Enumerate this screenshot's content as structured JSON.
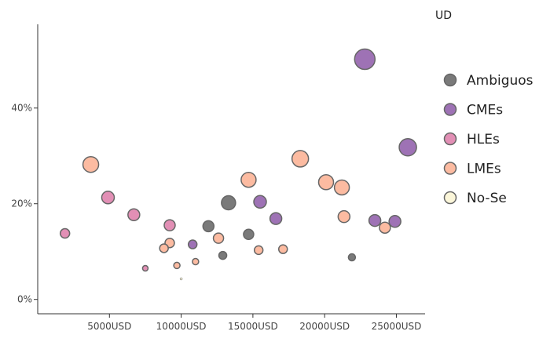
{
  "chart_data": {
    "type": "scatter",
    "title": "",
    "xlabel": "",
    "ylabel": "",
    "unit_label": "UD",
    "xlim": [
      0,
      27000
    ],
    "ylim": [
      -0.03,
      0.575
    ],
    "x_ticks": [
      {
        "value": 5000,
        "label": "5000USD"
      },
      {
        "value": 10000,
        "label": "10000USD"
      },
      {
        "value": 15000,
        "label": "15000USD"
      },
      {
        "value": 20000,
        "label": "20000USD"
      },
      {
        "value": 25000,
        "label": "25000USD"
      }
    ],
    "y_ticks": [
      {
        "value": 0,
        "label": "0%"
      },
      {
        "value": 0.2,
        "label": "20%"
      },
      {
        "value": 0.4,
        "label": "40%"
      }
    ],
    "grid": false,
    "legend_position": "right",
    "series": [
      {
        "name": "Ambiguos",
        "color": "#7a7a7a",
        "points": [
          {
            "x": 11900,
            "y": 0.153,
            "size": 7
          },
          {
            "x": 13300,
            "y": 0.202,
            "size": 9
          },
          {
            "x": 12900,
            "y": 0.092,
            "size": 5
          },
          {
            "x": 14700,
            "y": 0.136,
            "size": 6.5
          },
          {
            "x": 21900,
            "y": 0.088,
            "size": 4.5
          }
        ]
      },
      {
        "name": "CMEs",
        "color": "#9e72b5",
        "points": [
          {
            "x": 10800,
            "y": 0.115,
            "size": 5.5
          },
          {
            "x": 15500,
            "y": 0.204,
            "size": 8
          },
          {
            "x": 16600,
            "y": 0.169,
            "size": 7.5
          },
          {
            "x": 22800,
            "y": 0.502,
            "size": 13
          },
          {
            "x": 23500,
            "y": 0.165,
            "size": 7.5
          },
          {
            "x": 24900,
            "y": 0.163,
            "size": 7.5
          },
          {
            "x": 25800,
            "y": 0.318,
            "size": 11
          }
        ]
      },
      {
        "name": "HLEs",
        "color": "#e28fb5",
        "points": [
          {
            "x": 1900,
            "y": 0.138,
            "size": 6
          },
          {
            "x": 4900,
            "y": 0.213,
            "size": 8
          },
          {
            "x": 6700,
            "y": 0.177,
            "size": 7.5
          },
          {
            "x": 7500,
            "y": 0.065,
            "size": 3.5
          },
          {
            "x": 9200,
            "y": 0.155,
            "size": 7
          }
        ]
      },
      {
        "name": "LMEs",
        "color": "#fcbba1",
        "points": [
          {
            "x": 3700,
            "y": 0.282,
            "size": 10
          },
          {
            "x": 8800,
            "y": 0.107,
            "size": 5.5
          },
          {
            "x": 9200,
            "y": 0.118,
            "size": 6
          },
          {
            "x": 9700,
            "y": 0.071,
            "size": 4
          },
          {
            "x": 11000,
            "y": 0.079,
            "size": 4
          },
          {
            "x": 12600,
            "y": 0.128,
            "size": 6.5
          },
          {
            "x": 14700,
            "y": 0.25,
            "size": 9.5
          },
          {
            "x": 15400,
            "y": 0.103,
            "size": 5.5
          },
          {
            "x": 17100,
            "y": 0.105,
            "size": 5.5
          },
          {
            "x": 18300,
            "y": 0.294,
            "size": 10.5
          },
          {
            "x": 20100,
            "y": 0.245,
            "size": 9.5
          },
          {
            "x": 21200,
            "y": 0.234,
            "size": 9.5
          },
          {
            "x": 21350,
            "y": 0.173,
            "size": 7.5
          },
          {
            "x": 24200,
            "y": 0.15,
            "size": 7
          }
        ]
      },
      {
        "name": "No-Se",
        "color": "#fbf6d9",
        "points": [
          {
            "x": 10000,
            "y": 0.043,
            "size": 1.5
          }
        ]
      }
    ]
  }
}
